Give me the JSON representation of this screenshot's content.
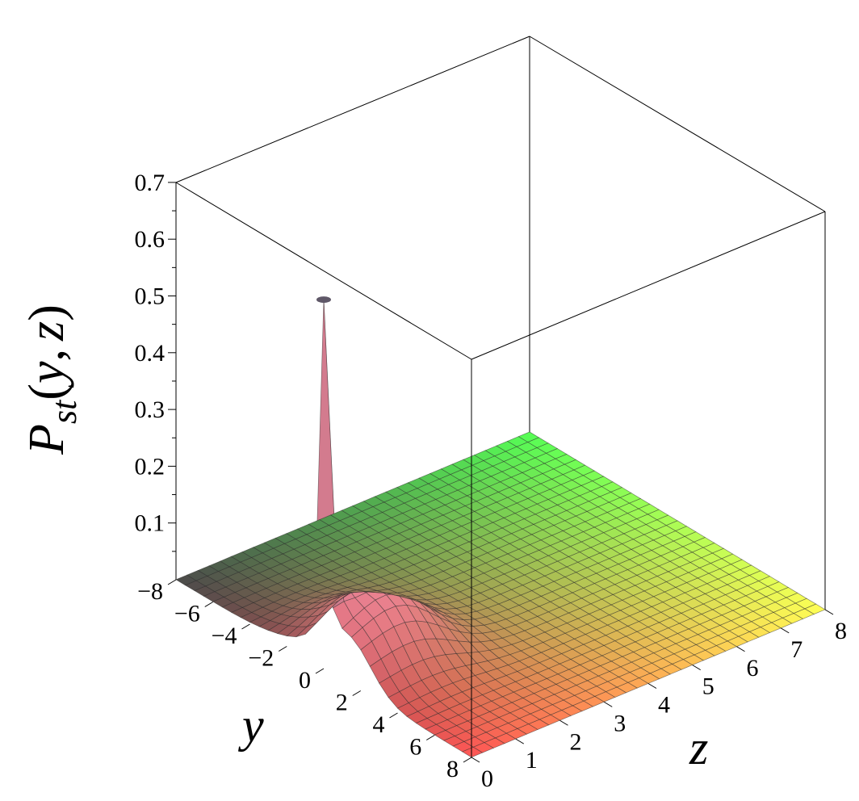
{
  "chart_data": {
    "type": "surface3d",
    "title": "",
    "zlabel": "P_st(y, z)",
    "zlabel_main": "P",
    "zlabel_sub": "st",
    "zlabel_paren_open": "(",
    "zlabel_y": "y",
    "zlabel_comma": ",",
    "zlabel_z": "z",
    "zlabel_paren_close": ")",
    "ylabel": "y",
    "xlabel": "z",
    "y_range": [
      -8,
      8
    ],
    "z_range": [
      0,
      8
    ],
    "p_range": [
      0,
      0.7
    ],
    "y_ticks": [
      "−8",
      "−6",
      "−4",
      "−2",
      "0",
      "2",
      "4",
      "6",
      "8"
    ],
    "z_ticks": [
      "0",
      "1",
      "2",
      "3",
      "4",
      "5",
      "6",
      "7",
      "8"
    ],
    "p_ticks": [
      "0.1",
      "0.2",
      "0.3",
      "0.4",
      "0.5",
      "0.6",
      "0.7"
    ],
    "peak": {
      "y": 0,
      "z": 0,
      "value": 0.65
    },
    "grid": true,
    "colors": {
      "peak": "#7a6e86",
      "near_y_axis": "#ff8aa0",
      "far_corner": "#ffff55",
      "back_corner": "#55ff55",
      "left_corner": "#4a4a4a",
      "front_corner": "#ff5555"
    }
  }
}
